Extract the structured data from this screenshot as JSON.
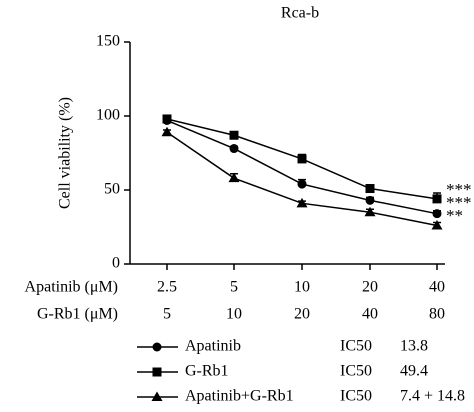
{
  "chart_data": {
    "type": "line",
    "title": "Rca-b",
    "y_label": "Cell viability (%)",
    "row_labels": [
      "Apatinib (μM)",
      "G-Rb1 (μM)"
    ],
    "categories": [
      "2.5",
      "5",
      "10",
      "20",
      "40"
    ],
    "categories2": [
      "5",
      "10",
      "20",
      "40",
      "80"
    ],
    "ylim": [
      0,
      150
    ],
    "yticks": [
      0,
      50,
      100,
      150
    ],
    "series": [
      {
        "name": "Apatinib",
        "color": "#000000",
        "marker": "circle",
        "values": [
          97,
          78,
          54,
          43,
          34
        ],
        "errors": [
          1.5,
          1.5,
          3,
          2,
          2
        ],
        "ic50_label": "IC50",
        "ic50": "13.8"
      },
      {
        "name": "G-Rb1",
        "color": "#000000",
        "marker": "square",
        "values": [
          98,
          87,
          71,
          51,
          44
        ],
        "errors": [
          1.5,
          1.5,
          3,
          1.5,
          4
        ],
        "ic50_label": "IC50",
        "ic50": "49.4"
      },
      {
        "name": "Apatinib+G-Rb1",
        "color": "#000000",
        "marker": "triangle",
        "values": [
          89,
          58,
          41,
          35,
          26
        ],
        "errors": [
          1.5,
          3,
          1.5,
          2,
          2
        ],
        "ic50_label": "IC50",
        "ic50": "7.4 + 14.8"
      }
    ],
    "annotations": [
      "***",
      "***",
      "**"
    ]
  }
}
